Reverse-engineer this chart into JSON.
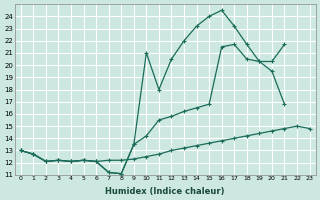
{
  "xlabel": "Humidex (Indice chaleur)",
  "bg_color": "#cce8e0",
  "grid_color": "#ffffff",
  "line_color": "#1a6b5a",
  "xlim": [
    -0.5,
    23.5
  ],
  "ylim": [
    11,
    25
  ],
  "xticks": [
    0,
    1,
    2,
    3,
    4,
    5,
    6,
    7,
    8,
    9,
    10,
    11,
    12,
    13,
    14,
    15,
    16,
    17,
    18,
    19,
    20,
    21,
    22,
    23
  ],
  "yticks": [
    11,
    12,
    13,
    14,
    15,
    16,
    17,
    18,
    19,
    20,
    21,
    22,
    23,
    24
  ],
  "series_bottom_x": [
    0,
    1,
    2,
    3,
    4,
    5,
    6,
    7,
    8,
    9,
    10,
    11,
    12,
    13,
    14,
    15,
    16,
    17,
    18,
    19,
    20,
    21,
    22,
    23
  ],
  "series_bottom_y": [
    13.0,
    12.7,
    12.1,
    12.2,
    12.1,
    12.2,
    12.1,
    12.2,
    12.2,
    12.3,
    12.5,
    12.7,
    13.0,
    13.2,
    13.4,
    13.6,
    13.8,
    14.0,
    14.2,
    14.4,
    14.6,
    14.8,
    15.0,
    14.8
  ],
  "series_mid_x": [
    0,
    1,
    2,
    3,
    4,
    5,
    6,
    7,
    8,
    9,
    10,
    11,
    12,
    13,
    14,
    15,
    16,
    17,
    18,
    19,
    20,
    21
  ],
  "series_mid_y": [
    13.0,
    12.7,
    12.1,
    12.2,
    12.1,
    12.2,
    12.1,
    11.2,
    11.1,
    13.5,
    14.2,
    15.5,
    15.8,
    16.2,
    16.5,
    16.8,
    21.5,
    21.7,
    20.5,
    20.3,
    20.3,
    21.7
  ],
  "series_top_x": [
    0,
    1,
    2,
    3,
    4,
    5,
    6,
    7,
    8,
    9,
    10,
    11,
    12,
    13,
    14,
    15,
    16,
    17,
    18,
    19,
    20,
    21
  ],
  "series_top_y": [
    13.0,
    12.7,
    12.1,
    12.2,
    12.1,
    12.2,
    12.1,
    11.2,
    11.1,
    13.5,
    21.0,
    18.0,
    20.5,
    22.0,
    23.2,
    24.0,
    24.5,
    23.2,
    21.7,
    20.3,
    19.5,
    16.8
  ]
}
